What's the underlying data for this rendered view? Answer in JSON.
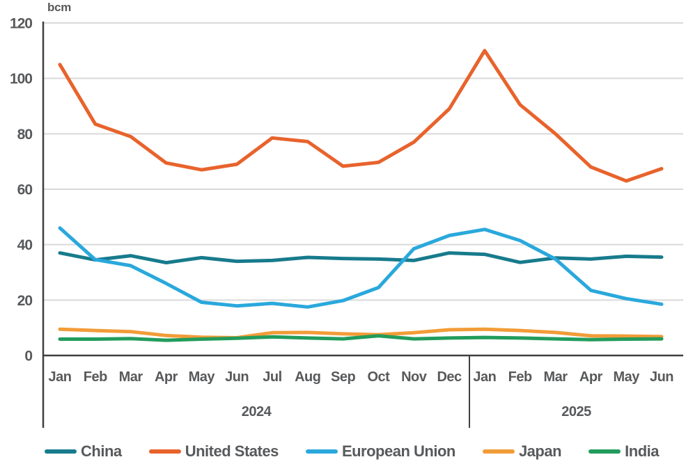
{
  "chart_data": {
    "type": "line",
    "title": "",
    "unit_label": "bcm",
    "ylabel": "bcm",
    "xlabel": "",
    "ylim": [
      0,
      120
    ],
    "yticks": [
      0,
      20,
      40,
      60,
      80,
      100,
      120
    ],
    "grid": "horizontal",
    "legend_position": "bottom",
    "categories": [
      "Jan",
      "Feb",
      "Mar",
      "Apr",
      "May",
      "Jun",
      "Jul",
      "Aug",
      "Sep",
      "Oct",
      "Nov",
      "Dec",
      "Jan",
      "Feb",
      "Mar",
      "Apr",
      "May",
      "Jun"
    ],
    "year_groups": [
      {
        "label": "2024",
        "start_index": 0,
        "end_index": 11
      },
      {
        "label": "2025",
        "start_index": 12,
        "end_index": 17
      }
    ],
    "series": [
      {
        "name": "China",
        "color": "#177b8c",
        "values": [
          37,
          34.5,
          36,
          33.5,
          35.3,
          34,
          34.3,
          35.4,
          35,
          34.8,
          34.3,
          37,
          36.5,
          33.6,
          35.2,
          34.8,
          35.8,
          35.5
        ]
      },
      {
        "name": "United States",
        "color": "#e8632c",
        "values": [
          105,
          83.5,
          79,
          69.5,
          67,
          69,
          78.5,
          77.2,
          68.3,
          69.7,
          77,
          89,
          110,
          90.5,
          80,
          68,
          63,
          67.4
        ]
      },
      {
        "name": "European Union",
        "color": "#2aa8dc",
        "values": [
          46,
          34.6,
          32.4,
          26,
          19.2,
          17.9,
          18.8,
          17.5,
          19.8,
          24.5,
          38.5,
          43.3,
          45.5,
          41.5,
          34.8,
          23.5,
          20.5,
          18.5
        ]
      },
      {
        "name": "Japan",
        "color": "#f29c38",
        "values": [
          9.5,
          9.0,
          8.6,
          7.2,
          6.6,
          6.4,
          8.2,
          8.3,
          7.8,
          7.5,
          8.2,
          9.3,
          9.5,
          9.0,
          8.3,
          7.1,
          7.0,
          6.8
        ]
      },
      {
        "name": "India",
        "color": "#229c5c",
        "values": [
          5.9,
          5.9,
          6.1,
          5.5,
          5.9,
          6.2,
          6.7,
          6.3,
          6.0,
          7.1,
          6.0,
          6.3,
          6.5,
          6.3,
          6.0,
          5.7,
          5.9,
          6.0
        ]
      }
    ],
    "colors": {
      "grid": "#d9d9d9",
      "axis": "#3f3f3f",
      "tick_text": "#58595b"
    }
  }
}
